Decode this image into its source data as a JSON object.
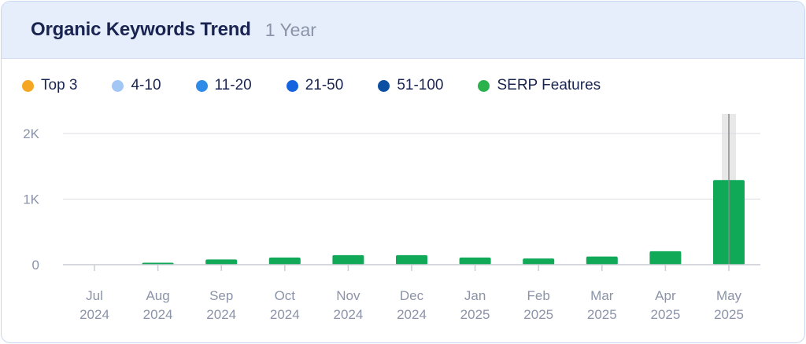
{
  "header": {
    "title": "Organic Keywords Trend",
    "range": "1 Year"
  },
  "legend": [
    {
      "label": "Top 3",
      "color": "#f5a623"
    },
    {
      "label": "4-10",
      "color": "#a3c7f5"
    },
    {
      "label": "11-20",
      "color": "#2f8be8"
    },
    {
      "label": "21-50",
      "color": "#1464e0"
    },
    {
      "label": "51-100",
      "color": "#0b4fa3"
    },
    {
      "label": "SERP Features",
      "color": "#2bb24c"
    }
  ],
  "chart_data": {
    "type": "bar",
    "categories": [
      "Jul 2024",
      "Aug 2024",
      "Sep 2024",
      "Oct 2024",
      "Nov 2024",
      "Dec 2024",
      "Jan 2025",
      "Feb 2025",
      "Mar 2025",
      "Apr 2025",
      "May 2025"
    ],
    "x_tick_lines": [
      [
        "Jul",
        "2024"
      ],
      [
        "Aug",
        "2024"
      ],
      [
        "Sep",
        "2024"
      ],
      [
        "Oct",
        "2024"
      ],
      [
        "Nov",
        "2024"
      ],
      [
        "Dec",
        "2024"
      ],
      [
        "Jan",
        "2025"
      ],
      [
        "Feb",
        "2025"
      ],
      [
        "Mar",
        "2025"
      ],
      [
        "Apr",
        "2025"
      ],
      [
        "May",
        "2025"
      ]
    ],
    "series": [
      {
        "name": "SERP Features",
        "color": "#0fa958",
        "values": [
          0,
          30,
          80,
          110,
          145,
          145,
          110,
          95,
          125,
          205,
          1290
        ]
      }
    ],
    "ylim": [
      0,
      2000
    ],
    "yticks": [
      0,
      1000,
      2000
    ],
    "ytick_labels": [
      "0",
      "1K",
      "2K"
    ],
    "highlighted_category": "May 2025",
    "grid": true
  }
}
